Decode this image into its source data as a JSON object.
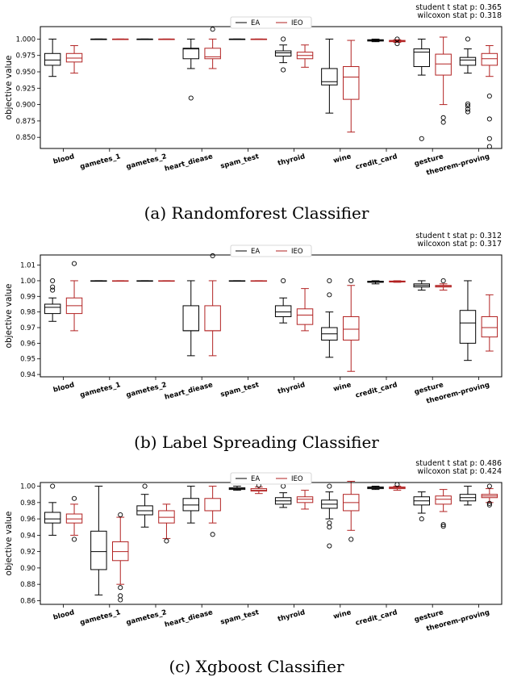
{
  "chart_data": [
    {
      "type": "box",
      "caption": "(a) Randomforest Classifier",
      "stats": [
        "student t stat p: 0.365",
        "wilcoxon stat p: 0.318"
      ],
      "ylabel": "objective value",
      "ylim": [
        0.833,
        1.019
      ],
      "yticks": [
        0.85,
        0.875,
        0.9,
        0.925,
        0.95,
        0.975,
        1.0
      ],
      "ytick_labels": [
        "0.850",
        "0.875",
        "0.900",
        "0.925",
        "0.950",
        "0.975",
        "1.000"
      ],
      "categories": [
        "blood",
        "gametes_1",
        "gametes_2",
        "heart_diease",
        "spam_test",
        "thyroid",
        "wine",
        "credit_card",
        "gesture",
        "theorem-proving"
      ],
      "legend": [
        "EA",
        "IEO"
      ],
      "colors": {
        "EA": "#000000",
        "IEO": "#b22222"
      },
      "series": [
        {
          "name": "EA",
          "boxes": [
            {
              "lw": 0.943,
              "q1": 0.96,
              "med": 0.968,
              "q3": 0.978,
              "uw": 1.0,
              "fliers": []
            },
            {
              "lw": 1.0,
              "q1": 1.0,
              "med": 1.0,
              "q3": 1.0,
              "uw": 1.0,
              "fliers": []
            },
            {
              "lw": 1.0,
              "q1": 1.0,
              "med": 1.0,
              "q3": 1.0,
              "uw": 1.0,
              "fliers": []
            },
            {
              "lw": 0.955,
              "q1": 0.97,
              "med": 0.985,
              "q3": 0.986,
              "uw": 1.0,
              "fliers": [
                0.91
              ]
            },
            {
              "lw": 1.0,
              "q1": 1.0,
              "med": 1.0,
              "q3": 1.0,
              "uw": 1.0,
              "fliers": []
            },
            {
              "lw": 0.964,
              "q1": 0.974,
              "med": 0.979,
              "q3": 0.982,
              "uw": 0.991,
              "fliers": [
                1.0,
                0.953
              ]
            },
            {
              "lw": 0.887,
              "q1": 0.93,
              "med": 0.935,
              "q3": 0.955,
              "uw": 1.0,
              "fliers": []
            },
            {
              "lw": 0.996,
              "q1": 0.997,
              "med": 0.998,
              "q3": 0.999,
              "uw": 1.0,
              "fliers": []
            },
            {
              "lw": 0.945,
              "q1": 0.958,
              "med": 0.98,
              "q3": 0.985,
              "uw": 1.0,
              "fliers": [
                0.848
              ]
            },
            {
              "lw": 0.948,
              "q1": 0.96,
              "med": 0.968,
              "q3": 0.972,
              "uw": 0.985,
              "fliers": [
                1.0,
                0.901,
                0.898,
                0.893,
                0.889
              ]
            }
          ]
        },
        {
          "name": "IEO",
          "boxes": [
            {
              "lw": 0.948,
              "q1": 0.965,
              "med": 0.971,
              "q3": 0.978,
              "uw": 0.99,
              "fliers": []
            },
            {
              "lw": 1.0,
              "q1": 1.0,
              "med": 1.0,
              "q3": 1.0,
              "uw": 1.0,
              "fliers": []
            },
            {
              "lw": 1.0,
              "q1": 1.0,
              "med": 1.0,
              "q3": 1.0,
              "uw": 1.0,
              "fliers": []
            },
            {
              "lw": 0.955,
              "q1": 0.97,
              "med": 0.973,
              "q3": 0.986,
              "uw": 1.0,
              "fliers": [
                1.015
              ]
            },
            {
              "lw": 1.0,
              "q1": 1.0,
              "med": 1.0,
              "q3": 1.0,
              "uw": 1.0,
              "fliers": []
            },
            {
              "lw": 0.957,
              "q1": 0.97,
              "med": 0.975,
              "q3": 0.98,
              "uw": 0.991,
              "fliers": []
            },
            {
              "lw": 0.858,
              "q1": 0.908,
              "med": 0.942,
              "q3": 0.958,
              "uw": 0.998,
              "fliers": []
            },
            {
              "lw": 0.995,
              "q1": 0.996,
              "med": 0.997,
              "q3": 0.998,
              "uw": 0.999,
              "fliers": [
                1.0,
                0.993
              ]
            },
            {
              "lw": 0.9,
              "q1": 0.945,
              "med": 0.962,
              "q3": 0.977,
              "uw": 1.003,
              "fliers": [
                0.88,
                0.873
              ]
            },
            {
              "lw": 0.943,
              "q1": 0.96,
              "med": 0.97,
              "q3": 0.978,
              "uw": 0.99,
              "fliers": [
                0.913,
                0.878,
                0.848,
                0.836
              ]
            }
          ]
        }
      ]
    },
    {
      "type": "box",
      "caption": "(b) Label Spreading Classifier",
      "stats": [
        "student t stat p: 0.312",
        "wilcoxon stat p: 0.317"
      ],
      "ylabel": "objective value",
      "ylim": [
        0.9385,
        1.0165
      ],
      "yticks": [
        0.94,
        0.95,
        0.96,
        0.97,
        0.98,
        0.99,
        1.0,
        1.01
      ],
      "ytick_labels": [
        "0.94",
        "0.95",
        "0.96",
        "0.97",
        "0.98",
        "0.99",
        "1.00",
        "1.01"
      ],
      "categories": [
        "blood",
        "gametes_1",
        "gametes_2",
        "heart_diease",
        "spam_test",
        "thyroid",
        "wine",
        "credit_card",
        "gesture",
        "theorem-proving"
      ],
      "legend": [
        "EA",
        "IEO"
      ],
      "colors": {
        "EA": "#000000",
        "IEO": "#b22222"
      },
      "series": [
        {
          "name": "EA",
          "boxes": [
            {
              "lw": 0.974,
              "q1": 0.979,
              "med": 0.983,
              "q3": 0.985,
              "uw": 0.989,
              "fliers": [
                1.0,
                0.996,
                0.994
              ]
            },
            {
              "lw": 1.0,
              "q1": 1.0,
              "med": 1.0,
              "q3": 1.0,
              "uw": 1.0,
              "fliers": []
            },
            {
              "lw": 1.0,
              "q1": 1.0,
              "med": 1.0,
              "q3": 1.0,
              "uw": 1.0,
              "fliers": []
            },
            {
              "lw": 0.952,
              "q1": 0.968,
              "med": 0.968,
              "q3": 0.984,
              "uw": 1.0,
              "fliers": []
            },
            {
              "lw": 1.0,
              "q1": 1.0,
              "med": 1.0,
              "q3": 1.0,
              "uw": 1.0,
              "fliers": []
            },
            {
              "lw": 0.973,
              "q1": 0.977,
              "med": 0.98,
              "q3": 0.984,
              "uw": 0.989,
              "fliers": [
                1.0
              ]
            },
            {
              "lw": 0.951,
              "q1": 0.962,
              "med": 0.966,
              "q3": 0.97,
              "uw": 0.98,
              "fliers": [
                1.0,
                0.991
              ]
            },
            {
              "lw": 0.998,
              "q1": 0.999,
              "med": 0.9993,
              "q3": 0.9997,
              "uw": 1.0,
              "fliers": []
            },
            {
              "lw": 0.994,
              "q1": 0.996,
              "med": 0.997,
              "q3": 0.998,
              "uw": 1.0,
              "fliers": []
            },
            {
              "lw": 0.949,
              "q1": 0.96,
              "med": 0.973,
              "q3": 0.981,
              "uw": 1.0,
              "fliers": []
            }
          ]
        },
        {
          "name": "IEO",
          "boxes": [
            {
              "lw": 0.968,
              "q1": 0.979,
              "med": 0.984,
              "q3": 0.989,
              "uw": 1.0,
              "fliers": [
                1.011
              ]
            },
            {
              "lw": 1.0,
              "q1": 1.0,
              "med": 1.0,
              "q3": 1.0,
              "uw": 1.0,
              "fliers": []
            },
            {
              "lw": 1.0,
              "q1": 1.0,
              "med": 1.0,
              "q3": 1.0,
              "uw": 1.0,
              "fliers": []
            },
            {
              "lw": 0.952,
              "q1": 0.968,
              "med": 0.968,
              "q3": 0.984,
              "uw": 1.0,
              "fliers": [
                1.016
              ]
            },
            {
              "lw": 1.0,
              "q1": 1.0,
              "med": 1.0,
              "q3": 1.0,
              "uw": 1.0,
              "fliers": []
            },
            {
              "lw": 0.968,
              "q1": 0.972,
              "med": 0.978,
              "q3": 0.982,
              "uw": 0.995,
              "fliers": []
            },
            {
              "lw": 0.942,
              "q1": 0.962,
              "med": 0.969,
              "q3": 0.977,
              "uw": 0.997,
              "fliers": [
                1.0
              ]
            },
            {
              "lw": 0.999,
              "q1": 0.9992,
              "med": 0.9995,
              "q3": 0.9998,
              "uw": 1.0,
              "fliers": []
            },
            {
              "lw": 0.994,
              "q1": 0.996,
              "med": 0.9965,
              "q3": 0.997,
              "uw": 0.998,
              "fliers": [
                1.0
              ]
            },
            {
              "lw": 0.955,
              "q1": 0.964,
              "med": 0.97,
              "q3": 0.977,
              "uw": 0.991,
              "fliers": []
            }
          ]
        }
      ]
    },
    {
      "type": "box",
      "caption": "(c) Xgboost Classifier",
      "stats": [
        "student t stat p: 0.486",
        "wilcoxon stat p: 0.424"
      ],
      "ylabel": "objective value",
      "ylim": [
        0.8555,
        1.0045
      ],
      "yticks": [
        0.86,
        0.88,
        0.9,
        0.92,
        0.94,
        0.96,
        0.98,
        1.0
      ],
      "ytick_labels": [
        "0.86",
        "0.88",
        "0.90",
        "0.92",
        "0.94",
        "0.96",
        "0.98",
        "1.00"
      ],
      "categories": [
        "blood",
        "gametes_1",
        "gametes_2",
        "heart_diease",
        "spam_test",
        "thyroid",
        "wine",
        "credit_card",
        "gesture",
        "theorem-proving"
      ],
      "legend": [
        "EA",
        "IEO"
      ],
      "colors": {
        "EA": "#000000",
        "IEO": "#b22222"
      },
      "series": [
        {
          "name": "EA",
          "boxes": [
            {
              "lw": 0.94,
              "q1": 0.955,
              "med": 0.96,
              "q3": 0.968,
              "uw": 0.98,
              "fliers": [
                1.0
              ]
            },
            {
              "lw": 0.867,
              "q1": 0.898,
              "med": 0.92,
              "q3": 0.945,
              "uw": 1.0,
              "fliers": []
            },
            {
              "lw": 0.95,
              "q1": 0.965,
              "med": 0.97,
              "q3": 0.976,
              "uw": 0.99,
              "fliers": [
                1.0
              ]
            },
            {
              "lw": 0.955,
              "q1": 0.97,
              "med": 0.977,
              "q3": 0.985,
              "uw": 1.0,
              "fliers": []
            },
            {
              "lw": 0.995,
              "q1": 0.996,
              "med": 0.997,
              "q3": 0.998,
              "uw": 1.0,
              "fliers": []
            },
            {
              "lw": 0.974,
              "q1": 0.978,
              "med": 0.982,
              "q3": 0.986,
              "uw": 0.992,
              "fliers": [
                1.0
              ]
            },
            {
              "lw": 0.96,
              "q1": 0.973,
              "med": 0.978,
              "q3": 0.983,
              "uw": 0.993,
              "fliers": [
                1.0,
                0.955,
                0.95,
                0.927
              ]
            },
            {
              "lw": 0.996,
              "q1": 0.997,
              "med": 0.998,
              "q3": 0.999,
              "uw": 1.0,
              "fliers": []
            },
            {
              "lw": 0.967,
              "q1": 0.977,
              "med": 0.982,
              "q3": 0.987,
              "uw": 0.993,
              "fliers": [
                0.96
              ]
            },
            {
              "lw": 0.977,
              "q1": 0.982,
              "med": 0.986,
              "q3": 0.99,
              "uw": 1.0,
              "fliers": []
            }
          ]
        },
        {
          "name": "IEO",
          "boxes": [
            {
              "lw": 0.94,
              "q1": 0.955,
              "med": 0.96,
              "q3": 0.966,
              "uw": 0.978,
              "fliers": [
                0.985,
                0.935
              ]
            },
            {
              "lw": 0.88,
              "q1": 0.909,
              "med": 0.92,
              "q3": 0.932,
              "uw": 0.962,
              "fliers": [
                0.965,
                0.876,
                0.866,
                0.861
              ]
            },
            {
              "lw": 0.936,
              "q1": 0.955,
              "med": 0.962,
              "q3": 0.97,
              "uw": 0.978,
              "fliers": [
                0.933
              ]
            },
            {
              "lw": 0.955,
              "q1": 0.97,
              "med": 0.97,
              "q3": 0.985,
              "uw": 1.0,
              "fliers": [
                0.941
              ]
            },
            {
              "lw": 0.991,
              "q1": 0.994,
              "med": 0.995,
              "q3": 0.997,
              "uw": 0.999,
              "fliers": [
                1.001
              ]
            },
            {
              "lw": 0.972,
              "q1": 0.98,
              "med": 0.984,
              "q3": 0.987,
              "uw": 0.995,
              "fliers": []
            },
            {
              "lw": 0.946,
              "q1": 0.97,
              "med": 0.98,
              "q3": 0.99,
              "uw": 1.006,
              "fliers": [
                0.935
              ]
            },
            {
              "lw": 0.995,
              "q1": 0.997,
              "med": 0.998,
              "q3": 0.999,
              "uw": 1.0,
              "fliers": [
                1.002
              ]
            },
            {
              "lw": 0.969,
              "q1": 0.978,
              "med": 0.984,
              "q3": 0.988,
              "uw": 0.996,
              "fliers": [
                0.953,
                0.951
              ]
            },
            {
              "lw": 0.98,
              "q1": 0.986,
              "med": 0.988,
              "q3": 0.99,
              "uw": 0.997,
              "fliers": [
                1.0,
                0.979,
                0.977
              ]
            }
          ]
        }
      ]
    }
  ]
}
